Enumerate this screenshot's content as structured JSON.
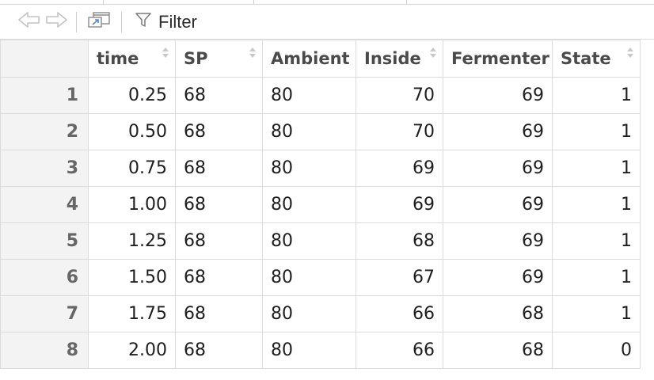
{
  "toolbar": {
    "filter_label": "Filter",
    "icons": [
      "back-arrow-icon",
      "forward-arrow-icon",
      "pop-out-window-icon",
      "filter-funnel-icon"
    ]
  },
  "table": {
    "columns": [
      "time",
      "SP",
      "Ambient",
      "Inside",
      "Fermenter",
      "State"
    ],
    "rows": [
      {
        "n": "1",
        "cells": [
          "0.25",
          "68",
          "80",
          "70",
          "69",
          "1"
        ]
      },
      {
        "n": "2",
        "cells": [
          "0.50",
          "68",
          "80",
          "70",
          "69",
          "1"
        ]
      },
      {
        "n": "3",
        "cells": [
          "0.75",
          "68",
          "80",
          "69",
          "69",
          "1"
        ]
      },
      {
        "n": "4",
        "cells": [
          "1.00",
          "68",
          "80",
          "69",
          "69",
          "1"
        ]
      },
      {
        "n": "5",
        "cells": [
          "1.25",
          "68",
          "80",
          "68",
          "69",
          "1"
        ]
      },
      {
        "n": "6",
        "cells": [
          "1.50",
          "68",
          "80",
          "67",
          "69",
          "1"
        ]
      },
      {
        "n": "7",
        "cells": [
          "1.75",
          "68",
          "80",
          "66",
          "68",
          "1"
        ]
      },
      {
        "n": "8",
        "cells": [
          "2.00",
          "68",
          "80",
          "66",
          "68",
          "0"
        ]
      }
    ]
  }
}
